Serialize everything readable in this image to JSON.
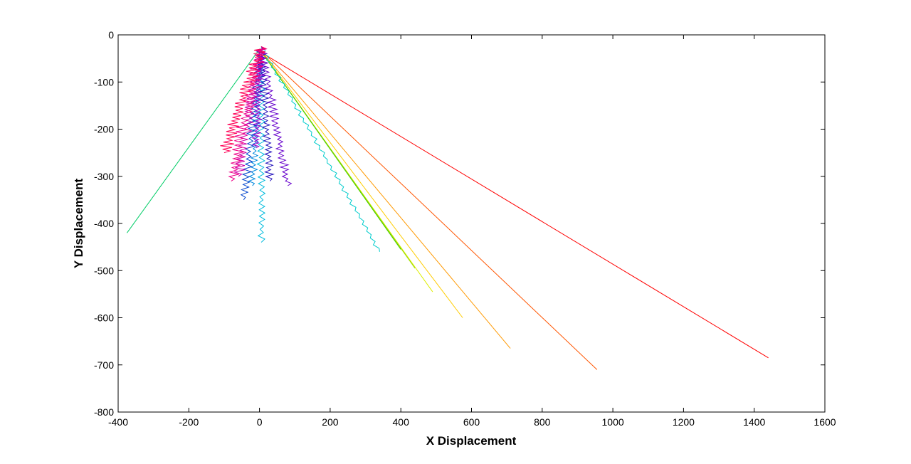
{
  "chart_data": {
    "type": "line",
    "title": "",
    "xlabel": "X Displacement",
    "ylabel": "Y Displacement",
    "xlim": [
      -400,
      1600
    ],
    "ylim": [
      -800,
      0
    ],
    "xticks": [
      -400,
      -200,
      0,
      200,
      400,
      600,
      800,
      1000,
      1200,
      1400,
      1600
    ],
    "yticks": [
      0,
      -100,
      -200,
      -300,
      -400,
      -500,
      -600,
      -700,
      -800
    ],
    "grid": false,
    "legend": "none",
    "series": [
      {
        "color": "#ff0000",
        "kind": "straight",
        "start": [
          0,
          -35
        ],
        "end": [
          1440,
          -685
        ]
      },
      {
        "color": "#ff5500",
        "kind": "straight",
        "start": [
          0,
          -30
        ],
        "end": [
          955,
          -710
        ]
      },
      {
        "color": "#ff9900",
        "kind": "straight",
        "start": [
          0,
          -30
        ],
        "end": [
          710,
          -665
        ]
      },
      {
        "color": "#ffcc00",
        "kind": "straight",
        "start": [
          0,
          -30
        ],
        "end": [
          575,
          -600
        ]
      },
      {
        "color": "#ddee00",
        "kind": "straight",
        "start": [
          0,
          -30
        ],
        "end": [
          490,
          -545
        ]
      },
      {
        "color": "#99dd00",
        "kind": "straight",
        "start": [
          0,
          -30
        ],
        "end": [
          440,
          -495
        ]
      },
      {
        "color": "#44cc00",
        "kind": "straight",
        "start": [
          0,
          -30
        ],
        "end": [
          400,
          -455
        ]
      },
      {
        "color": "#00cc66",
        "kind": "straight",
        "start": [
          0,
          -30
        ],
        "end": [
          -375,
          -420
        ]
      },
      {
        "color": "#00cccc",
        "kind": "zigzag",
        "start": [
          5,
          -25
        ],
        "end": [
          340,
          -460
        ],
        "amp": 5
      },
      {
        "color": "#00bbdd",
        "kind": "zigzag",
        "start": [
          5,
          -25
        ],
        "end": [
          5,
          -440
        ],
        "amp": 8
      },
      {
        "color": "#0088dd",
        "kind": "zigzag",
        "start": [
          5,
          -25
        ],
        "end": [
          -20,
          -320
        ],
        "amp": 8
      },
      {
        "color": "#0044cc",
        "kind": "zigzag",
        "start": [
          5,
          -25
        ],
        "end": [
          -45,
          -350
        ],
        "amp": 9
      },
      {
        "color": "#2211bb",
        "kind": "zigzag",
        "start": [
          5,
          -25
        ],
        "end": [
          30,
          -310
        ],
        "amp": 9
      },
      {
        "color": "#6600cc",
        "kind": "zigzag",
        "start": [
          5,
          -25
        ],
        "end": [
          80,
          -320
        ],
        "amp": 9
      },
      {
        "color": "#9900cc",
        "kind": "zigzag",
        "start": [
          5,
          -25
        ],
        "end": [
          -10,
          -240
        ],
        "amp": 9
      },
      {
        "color": "#cc00aa",
        "kind": "zigzag",
        "start": [
          5,
          -25
        ],
        "end": [
          -60,
          -300
        ],
        "amp": 12
      },
      {
        "color": "#ee0088",
        "kind": "zigzag",
        "start": [
          5,
          -25
        ],
        "end": [
          -80,
          -310
        ],
        "amp": 14
      },
      {
        "color": "#ff0055",
        "kind": "zigzag",
        "start": [
          5,
          -25
        ],
        "end": [
          -100,
          -250
        ],
        "amp": 14
      }
    ]
  }
}
